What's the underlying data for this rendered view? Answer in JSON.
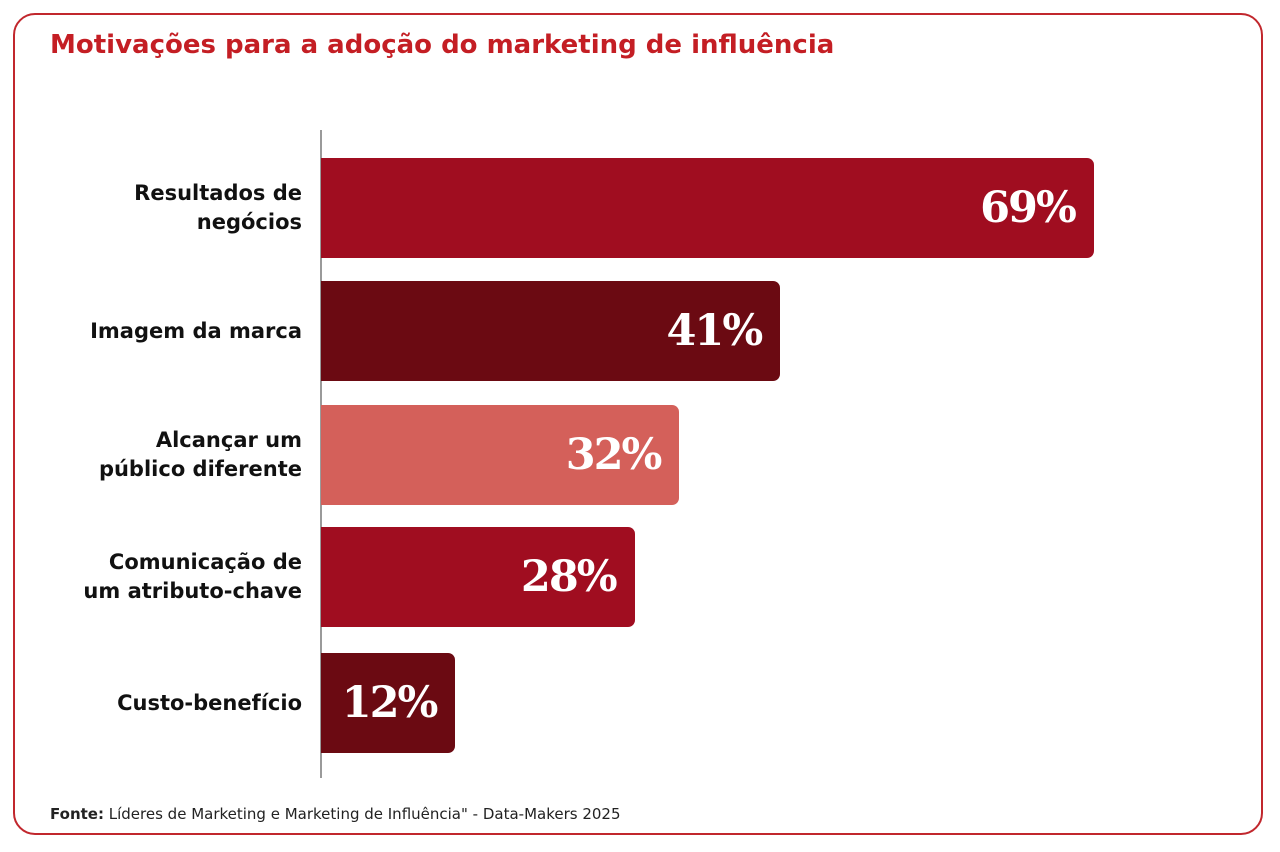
{
  "chart_data": {
    "type": "bar",
    "orientation": "horizontal",
    "title": "Motivações para a adoção do marketing de influência",
    "categories": [
      "Resultados de\nnegócios",
      "Imagem da marca",
      "Alcançar um\npúblico diferente",
      "Comunicação de\num atributo-chave",
      "Custo-benefício"
    ],
    "values": [
      69,
      41,
      32,
      28,
      12
    ],
    "value_labels": [
      "69%",
      "41%",
      "32%",
      "28%",
      "12%"
    ],
    "colors": [
      "#a00d20",
      "#6b0a12",
      "#d4605a",
      "#a00d20",
      "#6b0a12"
    ],
    "xlim": [
      0,
      100
    ],
    "grid": false,
    "legend": "none"
  },
  "source": {
    "label": "Fonte:",
    "text": "Líderes de Marketing e Marketing de Influência\" - Data-Makers 2025"
  },
  "colors": {
    "title": "#c41e24",
    "border": "#c1272d"
  }
}
